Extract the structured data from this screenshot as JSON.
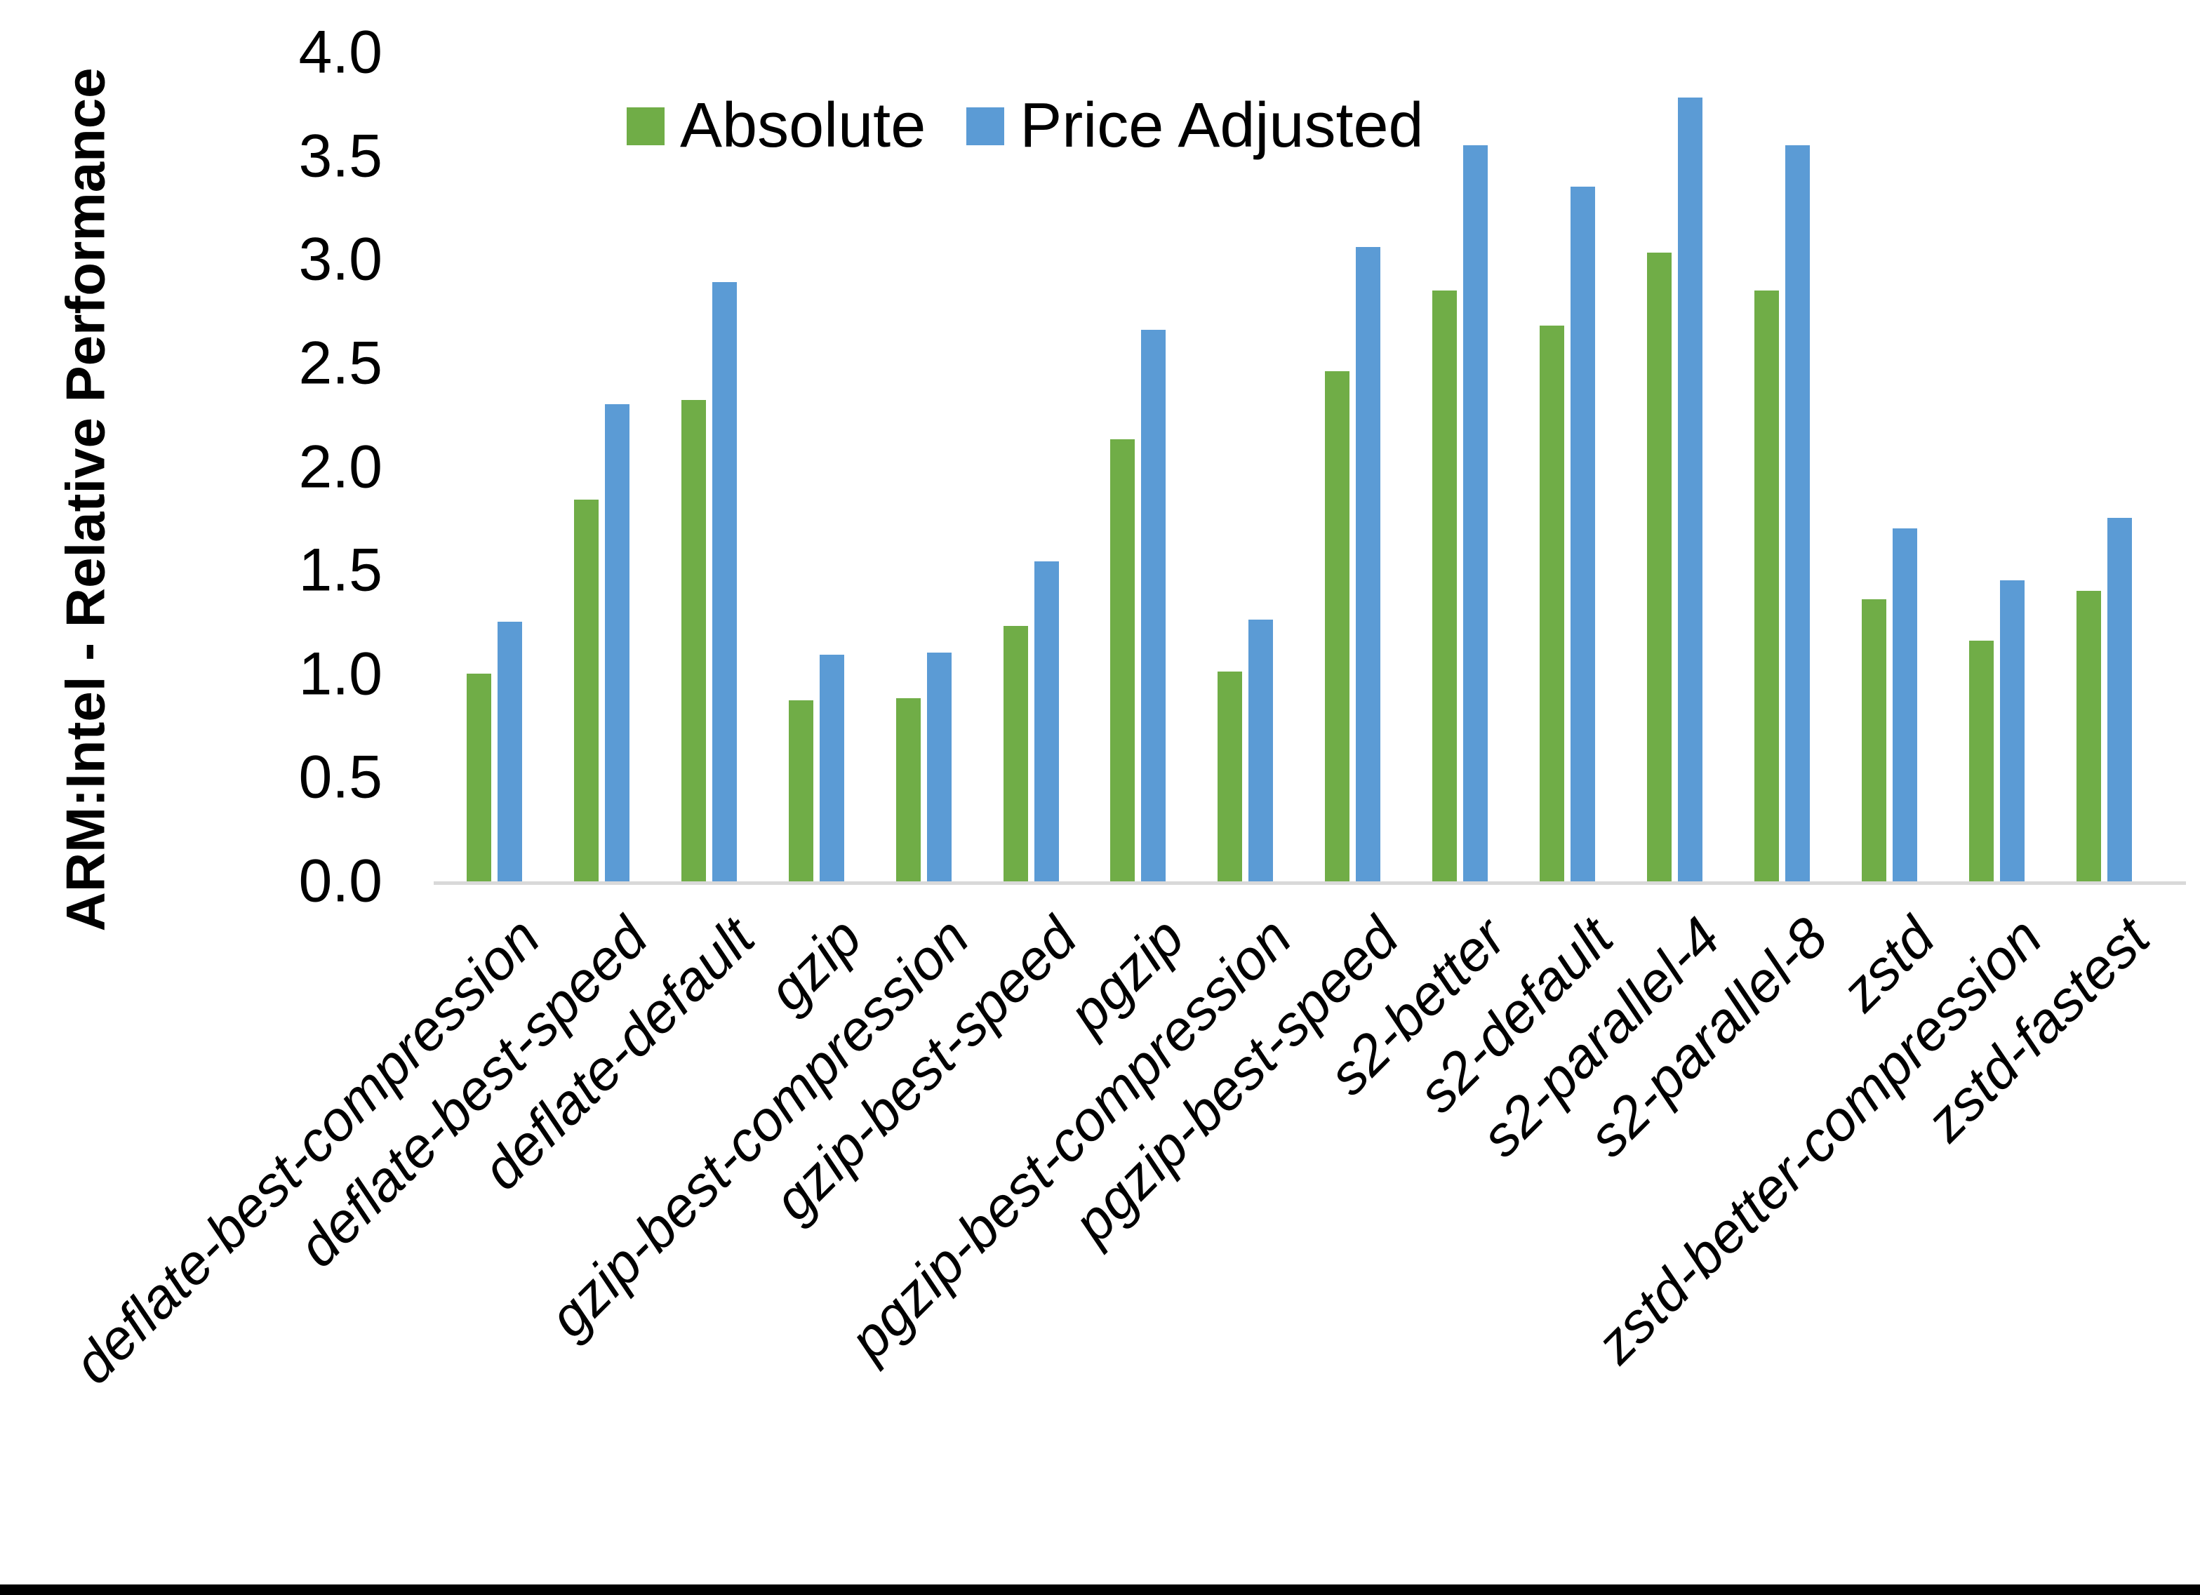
{
  "chart": {
    "y_axis_title": "ARM:Intel - Relative Performance"
  },
  "chart_data": {
    "type": "bar",
    "title": "",
    "xlabel": "",
    "ylabel": "ARM:Intel - Relative Performance",
    "ylim": [
      0,
      4
    ],
    "ytick_step": 0.5,
    "ytick_labels": [
      "0.0",
      "0.5",
      "1.0",
      "1.5",
      "2.0",
      "2.5",
      "3.0",
      "3.5",
      "4.0"
    ],
    "grid": false,
    "legend_position": "top-center",
    "legend": [
      "Absolute",
      "Price Adjusted"
    ],
    "categories": [
      "deflate-best-compression",
      "deflate-best-speed",
      "deflate-default",
      "gzip",
      "gzip-best-compression",
      "gzip-best-speed",
      "pgzip",
      "pgzip-best-compression",
      "pgzip-best-speed",
      "s2-better",
      "s2-default",
      "s2-parallel-4",
      "s2-parallel-8",
      "zstd",
      "zstd-better-compression",
      "zstd-fastest"
    ],
    "series": [
      {
        "name": "Absolute",
        "color": "#70AD47",
        "values": [
          1.01,
          1.85,
          2.33,
          0.88,
          0.89,
          1.24,
          2.14,
          1.02,
          2.47,
          2.86,
          2.69,
          3.04,
          2.86,
          1.37,
          1.17,
          1.41
        ]
      },
      {
        "name": "Price Adjusted",
        "color": "#5B9BD5",
        "values": [
          1.26,
          2.31,
          2.9,
          1.1,
          1.11,
          1.55,
          2.67,
          1.27,
          3.07,
          3.56,
          3.36,
          3.79,
          3.56,
          1.71,
          1.46,
          1.76
        ]
      }
    ],
    "axis_line_color": "#D9D9D9",
    "bottom_border_color": "#000000"
  }
}
